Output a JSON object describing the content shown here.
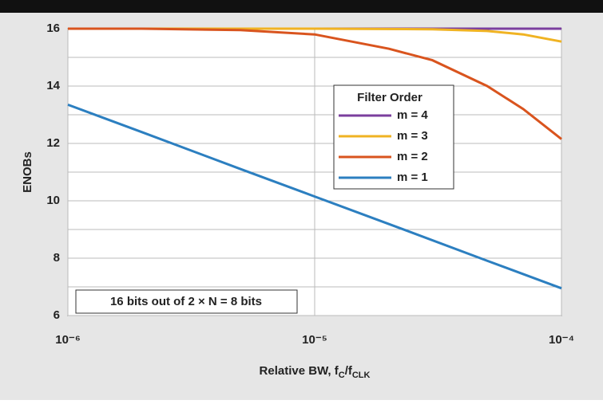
{
  "chart_data": {
    "type": "line",
    "y_label": "ENOBs",
    "x_label": [
      {
        "text": "Relative BW, f"
      },
      {
        "text": "C",
        "sub": true
      },
      {
        "text": "/f"
      },
      {
        "text": "CLK",
        "sub": true
      }
    ],
    "annotation": "16 bits out of 2 × N = 8 bits",
    "legend_title": "Filter Order",
    "x_log": true,
    "xlim": [
      1e-06,
      0.0001
    ],
    "xticks": [
      {
        "value": 1e-06,
        "label": "10⁻⁶"
      },
      {
        "value": 1e-05,
        "label": "10⁻⁵"
      },
      {
        "value": 0.0001,
        "label": "10⁻⁴"
      }
    ],
    "ylim": [
      6,
      16
    ],
    "yticks": [
      6,
      8,
      10,
      12,
      14,
      16
    ],
    "y_minor_ticks": [
      7,
      9,
      11,
      13,
      15
    ],
    "grid": true,
    "series": [
      {
        "name": "m = 4",
        "color": "#7b3f9e",
        "x": [
          1e-06,
          1e-05,
          0.0001
        ],
        "values": [
          16,
          16,
          16
        ]
      },
      {
        "name": "m = 3",
        "color": "#f0b323",
        "x": [
          1e-06,
          1e-05,
          3e-05,
          5e-05,
          7e-05,
          0.0001
        ],
        "values": [
          16,
          16,
          15.98,
          15.92,
          15.8,
          15.55
        ]
      },
      {
        "name": "m = 2",
        "color": "#d9541e",
        "x": [
          1e-06,
          2e-06,
          5e-06,
          1e-05,
          2e-05,
          3e-05,
          5e-05,
          7e-05,
          0.0001
        ],
        "values": [
          16,
          16,
          15.95,
          15.8,
          15.3,
          14.9,
          14.0,
          13.2,
          12.15
        ]
      },
      {
        "name": "m = 1",
        "color": "#2c7fc0",
        "x": [
          1e-06,
          2e-06,
          5e-06,
          1e-05,
          2e-05,
          5e-05,
          0.0001
        ],
        "values": [
          13.35,
          12.39,
          11.11,
          10.15,
          9.19,
          7.91,
          6.95
        ]
      }
    ]
  }
}
